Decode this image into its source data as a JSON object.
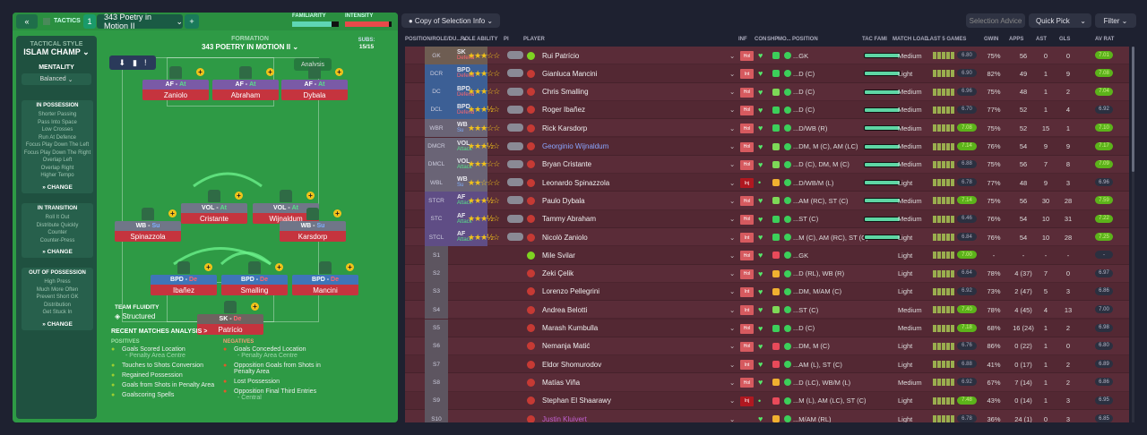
{
  "tactics": {
    "back": "«",
    "title": "TACTICS",
    "slot": "1",
    "name": "343 Poetry in Motion II",
    "add": "+",
    "familiarity_label": "FAMILIARITY",
    "familiarity": 0.85,
    "intensity_label": "INTENSITY",
    "intensity": 0.95
  },
  "side": {
    "style_label": "TACTICAL STYLE",
    "style": "ISLAM CHAMP",
    "mentality_label": "MENTALITY",
    "mentality": "Balanced",
    "in_possession": {
      "title": "IN POSSESSION",
      "items": [
        "Shorter Passing",
        "Pass Into Space",
        "Low Crosses",
        "Run At Defence",
        "Focus Play Down The Left",
        "Focus Play Down The Right",
        "Overlap Left",
        "Overlap Right",
        "Higher Tempo"
      ]
    },
    "in_transition": {
      "title": "IN TRANSITION",
      "items": [
        "Roll It Out",
        "Distribute Quickly",
        "Counter",
        "Counter-Press"
      ]
    },
    "out_possession": {
      "title": "OUT OF POSSESSION",
      "items": [
        "High Press",
        "Much More Often",
        "Prevent Short GK",
        "Distribution",
        "Get Stuck In"
      ]
    },
    "change": "CHANGE"
  },
  "formation": {
    "label": "FORMATION",
    "name": "343 POETRY IN MOTION II",
    "subs_label": "SUBS:",
    "subs": "15/15",
    "analysis": "Analysis",
    "fluidity_label": "TEAM FLUIDITY",
    "fluidity": "Structured"
  },
  "pitch": [
    {
      "role": "AF",
      "duty": "At",
      "name": "Zaniolo"
    },
    {
      "role": "AF",
      "duty": "At",
      "name": "Abraham"
    },
    {
      "role": "AF",
      "duty": "At",
      "name": "Dybala"
    },
    {
      "role": "VOL",
      "duty": "At",
      "name": "Cristante"
    },
    {
      "role": "VOL",
      "duty": "At",
      "name": "Wijnaldum"
    },
    {
      "role": "WB",
      "duty": "Su",
      "name": "Spinazzola"
    },
    {
      "role": "WB",
      "duty": "Su",
      "name": "Karsdorp"
    },
    {
      "role": "BPD",
      "duty": "De",
      "name": "Ibañez"
    },
    {
      "role": "BPD",
      "duty": "De",
      "name": "Smalling"
    },
    {
      "role": "BPD",
      "duty": "De",
      "name": "Mancini"
    },
    {
      "role": "SK",
      "duty": "De",
      "name": "Patrício"
    }
  ],
  "subs": [
    {
      "name": "Svilar",
      "pos": "GK"
    },
    {
      "name": "Zeki Çelik",
      "pos": "D (RL), WB (R)"
    },
    {
      "name": "Pellegrini",
      "pos": "DM, M/AM (C)"
    },
    {
      "name": "Belotti",
      "pos": "ST (C)"
    },
    {
      "name": "Kumbulla",
      "pos": "D (C)"
    },
    {
      "name": "Matić",
      "pos": "DM, M (C)"
    },
    {
      "name": "Shomurodov",
      "pos": "AM (L), ST (C)"
    },
    {
      "name": "Viña",
      "pos": "D (LC), WB/M (L)"
    },
    {
      "name": "El Shaarawy",
      "pos": "M (L), AM (LC), ST (C)"
    },
    {
      "name": "Kluivert",
      "pos": ""
    }
  ],
  "analysis": {
    "title": "RECENT MATCHES ANALYSIS >",
    "pos_label": "POSITIVES",
    "neg_label": "NEGATIVES",
    "positives": [
      [
        "Goals Scored Location",
        "- Penalty Area Centre"
      ],
      [
        "Touches to Shots Conversion",
        ""
      ],
      [
        "Regained Possession",
        ""
      ],
      [
        "Goals from Shots in Penalty Area",
        ""
      ],
      [
        "Goalscoring Spells",
        ""
      ]
    ],
    "negatives": [
      [
        "Goals Conceded Location",
        "- Penalty Area Centre"
      ],
      [
        "Opposition Goals from Shots in Penalty Area",
        ""
      ],
      [
        "Lost Possession",
        ""
      ],
      [
        "Opposition Final Third Entries",
        "- Central"
      ]
    ]
  },
  "toolbar": {
    "view": "Copy of Selection Info",
    "advice": "Selection Advice",
    "quick": "Quick Pick",
    "filter": "Filter"
  },
  "headers": [
    "POSITION/ROLE/DU... ▲",
    "ROLE ABILITY",
    "PI",
    "PLAYER",
    "INF",
    "CON",
    "SHP",
    "MO...",
    "POSITION",
    "TAC FAMI",
    "MATCH LOAD",
    "LAST 5 GAMES",
    "GWIN",
    "APPS",
    "AST",
    "GLS",
    "AV RAT"
  ],
  "rows": [
    [
      "GK",
      "SK",
      "Defend",
      "★★★☆☆",
      "Rui Patrício",
      "Hol",
      "good",
      "...GK",
      0.9,
      "Medium",
      "6.80",
      0,
      "75%",
      "56",
      "0",
      "0",
      "7.01",
      1
    ],
    [
      "DCR",
      "BPD",
      "Defend",
      "★★★☆☆",
      "Gianluca Mancini",
      "Int",
      "good",
      "...D (C)",
      0.9,
      "Light",
      "6.90",
      0,
      "82%",
      "49",
      "1",
      "9",
      "7.08",
      1
    ],
    [
      "DC",
      "BPD",
      "Defend",
      "★★★☆☆",
      "Chris Smalling",
      "Hol",
      "ok",
      "...D (C)",
      0.9,
      "Medium",
      "6.96",
      0,
      "75%",
      "48",
      "1",
      "2",
      "7.04",
      1
    ],
    [
      "DCL",
      "BPD",
      "Defend",
      "★★★½☆",
      "Roger Ibañez",
      "Hol",
      "good",
      "...D (C)",
      0.9,
      "Medium",
      "6.70",
      0,
      "77%",
      "52",
      "1",
      "4",
      "6.92",
      0
    ],
    [
      "WBR",
      "WB",
      "Su",
      "★★★☆☆",
      "Rick Karsdorp",
      "Hol",
      "good",
      "...D/WB (R)",
      0.9,
      "Medium",
      "7.08",
      1,
      "75%",
      "52",
      "15",
      "1",
      "7.10",
      1
    ],
    [
      "DMCR",
      "VOL",
      "Attack",
      "★★★½☆",
      "Georginio Wijnaldum",
      "Hol",
      "ok",
      "...DM, M (C), AM (LC)",
      0.9,
      "Medium",
      "7.14",
      1,
      "76%",
      "54",
      "9",
      "9",
      "7.17",
      1
    ],
    [
      "DMCL",
      "VOL",
      "Attack",
      "★★★☆☆",
      "Bryan Cristante",
      "Hol",
      "ok",
      "...D (C), DM, M (C)",
      0.9,
      "Medium",
      "6.88",
      0,
      "75%",
      "56",
      "7",
      "8",
      "7.09",
      1
    ],
    [
      "WBL",
      "WB",
      "Su",
      "★★☆☆☆",
      "Leonardo Spinazzola",
      "Inj",
      "warn",
      "...D/WB/M (L)",
      0.9,
      "Light",
      "6.78",
      0,
      "77%",
      "48",
      "9",
      "3",
      "6.96",
      0
    ],
    [
      "STCR",
      "AF",
      "Attack",
      "★★★½☆",
      "Paulo Dybala",
      "Hol",
      "ok",
      "...AM (RC), ST (C)",
      0.9,
      "Medium",
      "7.14",
      1,
      "75%",
      "56",
      "30",
      "28",
      "7.59",
      1
    ],
    [
      "STC",
      "AF",
      "Attack",
      "★★★½☆",
      "Tammy Abraham",
      "Hol",
      "good",
      "...ST (C)",
      0.9,
      "Medium",
      "6.46",
      0,
      "76%",
      "54",
      "10",
      "31",
      "7.22",
      1
    ],
    [
      "STCL",
      "AF",
      "Attack",
      "★★★½☆",
      "Nicolò Zaniolo",
      "Int",
      "good",
      "...M (C), AM (RC), ST (C)",
      0.9,
      "Light",
      "6.84",
      0,
      "76%",
      "54",
      "10",
      "28",
      "7.25",
      1
    ],
    [
      "S1",
      "",
      "",
      "",
      "Mile Svilar",
      "Hol",
      "bad",
      "...GK",
      null,
      "Light",
      "7.00",
      1,
      "-",
      "-",
      "-",
      "-",
      "-",
      0
    ],
    [
      "S2",
      "",
      "",
      "",
      "Zeki Çelik",
      "Hol",
      "warn",
      "...D (RL), WB (R)",
      null,
      "Light",
      "6.64",
      0,
      "78%",
      "4 (37)",
      "7",
      "0",
      "6.97",
      0
    ],
    [
      "S3",
      "",
      "",
      "",
      "Lorenzo Pellegrini",
      "Int",
      "warn",
      "...DM, M/AM (C)",
      null,
      "Light",
      "6.92",
      0,
      "73%",
      "2 (47)",
      "5",
      "3",
      "6.86",
      0
    ],
    [
      "S4",
      "",
      "",
      "",
      "Andrea Belotti",
      "Int",
      "ok",
      "...ST (C)",
      null,
      "Medium",
      "7.40",
      1,
      "78%",
      "4 (45)",
      "4",
      "13",
      "7.00",
      0
    ],
    [
      "S5",
      "",
      "",
      "",
      "Marash Kumbulla",
      "Hol",
      "good",
      "...D (C)",
      null,
      "Medium",
      "7.18",
      1,
      "68%",
      "16 (24)",
      "1",
      "2",
      "6.98",
      0
    ],
    [
      "S6",
      "",
      "",
      "",
      "Nemanja Matić",
      "Hol",
      "bad",
      "...DM, M (C)",
      null,
      "Light",
      "6.76",
      0,
      "86%",
      "0 (22)",
      "1",
      "0",
      "6.80",
      0
    ],
    [
      "S7",
      "",
      "",
      "",
      "Eldor Shomurodov",
      "Int",
      "bad",
      "...AM (L), ST (C)",
      null,
      "Light",
      "6.88",
      0,
      "41%",
      "0 (17)",
      "1",
      "2",
      "6.89",
      0
    ],
    [
      "S8",
      "",
      "",
      "",
      "Matías Viña",
      "Hol",
      "warn",
      "...D (LC), WB/M (L)",
      null,
      "Medium",
      "6.92",
      0,
      "67%",
      "7 (14)",
      "1",
      "2",
      "6.86",
      0
    ],
    [
      "S9",
      "",
      "",
      "",
      "Stephan El Shaarawy",
      "Inj",
      "bad",
      "...M (L), AM (LC), ST (C)",
      null,
      "Light",
      "7.48",
      1,
      "43%",
      "0 (14)",
      "1",
      "3",
      "6.95",
      0
    ],
    [
      "S10",
      "",
      "",
      "",
      "Justin Kluivert",
      "",
      "warn",
      "...M/AM (RL)",
      null,
      "Light",
      "6.78",
      0,
      "36%",
      "24 (1)",
      "0",
      "3",
      "6.85",
      0
    ]
  ]
}
